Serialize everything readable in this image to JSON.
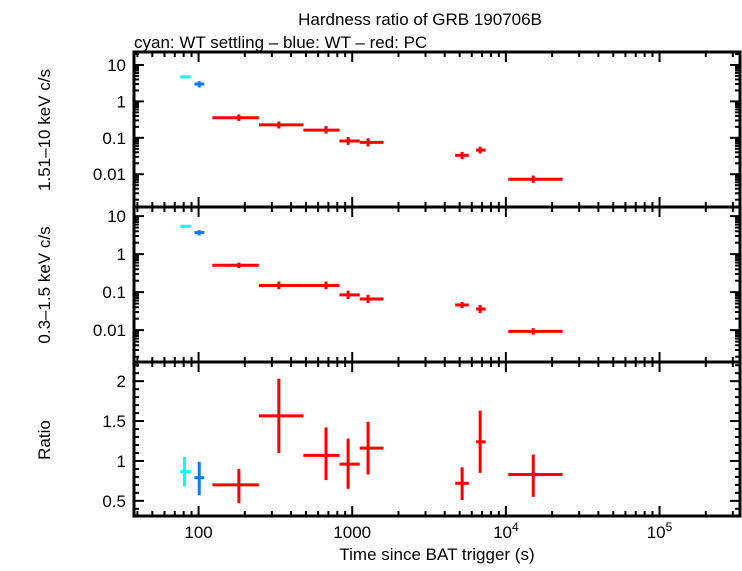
{
  "chart_data": {
    "type": "scatter",
    "title": "Hardness ratio of GRB 190706B",
    "subtitle": "cyan: WT settling – blue: WT – red: PC",
    "xlabel": "Time since BAT trigger (s)",
    "xscale": "log",
    "xlim": [
      38,
      334000
    ],
    "x_tick_labels": [
      "100",
      "1000",
      "10^4",
      "10^5"
    ],
    "grid": false,
    "panels": [
      {
        "key": "hard",
        "ylabel": "1.51–10 keV c/s",
        "yscale": "log",
        "ylim": [
          0.00126,
          22.7
        ],
        "y_tick_labels": [
          "10",
          "1",
          "0.1",
          "0.01"
        ]
      },
      {
        "key": "soft",
        "ylabel": "0.3–1.5 keV c/s",
        "yscale": "log",
        "ylim": [
          0.00145,
          17.4
        ],
        "y_tick_labels": [
          "10",
          "1",
          "0.1",
          "0.01"
        ]
      },
      {
        "key": "ratio",
        "ylabel": "Ratio",
        "yscale": "linear",
        "ylim": [
          0.31,
          2.24
        ],
        "y_tick_labels": [
          "2",
          "1.5",
          "1",
          "0.5"
        ]
      }
    ],
    "series": [
      {
        "color": "#00ffff",
        "points": [
          {
            "t": 81,
            "t_lo": 76,
            "t_hi": 89,
            "hard": 4.7,
            "hard_err": [
              4.2,
              5.2
            ],
            "soft": 5.4,
            "soft_err": [
              4.9,
              5.9
            ],
            "ratio": 0.865,
            "ratio_err": [
              0.68,
              1.05
            ]
          }
        ]
      },
      {
        "color": "#0a7cff",
        "points": [
          {
            "t": 101,
            "t_lo": 94,
            "t_hi": 109,
            "hard": 3.0,
            "hard_err": [
              2.4,
              3.6
            ],
            "soft": 3.7,
            "soft_err": [
              3.1,
              4.3
            ],
            "ratio": 0.79,
            "ratio_err": [
              0.57,
              0.99
            ]
          }
        ]
      },
      {
        "color": "#ff0000",
        "points": [
          {
            "t": 183,
            "t_lo": 123,
            "t_hi": 247,
            "hard": 0.356,
            "hard_err": [
              0.29,
              0.44
            ],
            "soft": 0.51,
            "soft_err": [
              0.43,
              0.6
            ],
            "ratio": 0.7,
            "ratio_err": [
              0.47,
              0.9
            ]
          },
          {
            "t": 333,
            "t_lo": 247,
            "t_hi": 481,
            "hard": 0.226,
            "hard_err": [
              0.18,
              0.28
            ],
            "soft": 0.149,
            "soft_err": [
              0.12,
              0.19
            ],
            "ratio": 1.565,
            "ratio_err": [
              1.1,
              2.03
            ]
          },
          {
            "t": 675,
            "t_lo": 481,
            "t_hi": 826,
            "hard": 0.163,
            "hard_err": [
              0.13,
              0.21
            ],
            "soft": 0.149,
            "soft_err": [
              0.12,
              0.19
            ],
            "ratio": 1.07,
            "ratio_err": [
              0.76,
              1.42
            ]
          },
          {
            "t": 940,
            "t_lo": 826,
            "t_hi": 1119,
            "hard": 0.082,
            "hard_err": [
              0.064,
              0.105
            ],
            "soft": 0.085,
            "soft_err": [
              0.066,
              0.11
            ],
            "ratio": 0.96,
            "ratio_err": [
              0.65,
              1.28
            ]
          },
          {
            "t": 1268,
            "t_lo": 1119,
            "t_hi": 1597,
            "hard": 0.075,
            "hard_err": [
              0.058,
              0.097
            ],
            "soft": 0.066,
            "soft_err": [
              0.052,
              0.085
            ],
            "ratio": 1.16,
            "ratio_err": [
              0.83,
              1.49
            ]
          },
          {
            "t": 5190,
            "t_lo": 4675,
            "t_hi": 5740,
            "hard": 0.033,
            "hard_err": [
              0.026,
              0.041
            ],
            "soft": 0.046,
            "soft_err": [
              0.038,
              0.055
            ],
            "ratio": 0.72,
            "ratio_err": [
              0.51,
              0.92
            ]
          },
          {
            "t": 6800,
            "t_lo": 6400,
            "t_hi": 7380,
            "hard": 0.046,
            "hard_err": [
              0.037,
              0.057
            ],
            "soft": 0.036,
            "soft_err": [
              0.028,
              0.046
            ],
            "ratio": 1.24,
            "ratio_err": [
              0.85,
              1.63
            ]
          },
          {
            "t": 15070,
            "t_lo": 10360,
            "t_hi": 23400,
            "hard": 0.0073,
            "hard_err": [
              0.0058,
              0.0092
            ],
            "soft": 0.0093,
            "soft_err": [
              0.0076,
              0.0113
            ],
            "ratio": 0.83,
            "ratio_err": [
              0.55,
              1.08
            ]
          }
        ]
      }
    ]
  }
}
